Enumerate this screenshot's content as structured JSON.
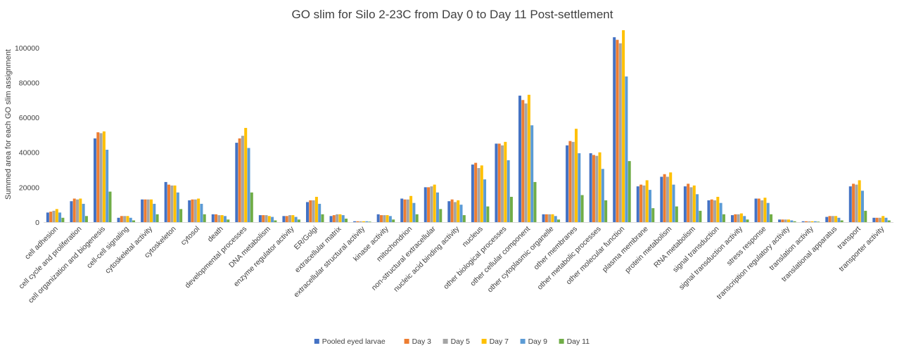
{
  "chart_data": {
    "type": "bar",
    "title": "GO slim for Silo 2-23C from Day 0 to Day 11 Post-settlement",
    "xlabel": "",
    "ylabel": "Summed area for each GO slim assignment",
    "ylim": [
      0,
      110000
    ],
    "yticks": [
      0,
      20000,
      40000,
      60000,
      80000,
      100000
    ],
    "grid": false,
    "legend_position": "bottom",
    "categories": [
      "cell adhesion",
      "cell cycle and proliferation",
      "cell organization and biogenesis",
      "cell-cell signaling",
      "cytoskeletal activity",
      "cytoskeleton",
      "cytosol",
      "death",
      "developmental processes",
      "DNA metabolism",
      "enzyme regulator activity",
      "ER/Golgi",
      "extracellular matrix",
      "extracellular structural activity",
      "kinase activity",
      "mitochondrion",
      "non-structural extracellular",
      "nucleic acid binding activity",
      "nucleus",
      "other biological processes",
      "other cellular component",
      "other cytoplasmic organelle",
      "other membranes",
      "other metabolic processes",
      "other molecular function",
      "plasma membrane",
      "protein metabolism",
      "RNA metabolism",
      "signal transduction",
      "signal transduction activity",
      "stress response",
      "transcription regulatory activity",
      "translation activity",
      "translational apparatus",
      "transport",
      "transporter activity"
    ],
    "series": [
      {
        "name": "Pooled eyed larvae",
        "color": "#4472c4",
        "values": [
          5500,
          12000,
          48000,
          2500,
          13000,
          23000,
          12500,
          4500,
          45500,
          4000,
          3500,
          11500,
          3500,
          500,
          4500,
          13500,
          20000,
          12000,
          33000,
          45000,
          72500,
          4500,
          44000,
          39500,
          106000,
          20500,
          26000,
          20500,
          12500,
          4000,
          13500,
          1500,
          500,
          3000,
          20500,
          2500
        ]
      },
      {
        "name": "Day 3",
        "color": "#ed7d31",
        "values": [
          6000,
          13500,
          51500,
          3500,
          13000,
          21500,
          13000,
          4500,
          48000,
          4000,
          3500,
          12500,
          4000,
          500,
          4000,
          13000,
          20000,
          13000,
          34000,
          45000,
          70000,
          4500,
          46500,
          38500,
          104500,
          21500,
          27500,
          22000,
          13000,
          4500,
          13500,
          1500,
          500,
          3500,
          22000,
          2500
        ]
      },
      {
        "name": "Day 5",
        "color": "#a5a5a5",
        "values": [
          6500,
          13000,
          51000,
          3500,
          13000,
          21000,
          13000,
          4000,
          49500,
          4000,
          4000,
          12500,
          4500,
          500,
          4000,
          13000,
          20500,
          11500,
          31000,
          44000,
          68000,
          4500,
          46000,
          38000,
          102500,
          21000,
          26000,
          20000,
          12500,
          4500,
          12500,
          1500,
          500,
          3500,
          21500,
          2500
        ]
      },
      {
        "name": "Day 7",
        "color": "#ffc000",
        "values": [
          7500,
          13500,
          52000,
          3500,
          13000,
          21000,
          13500,
          4000,
          54000,
          3500,
          4000,
          14500,
          4500,
          500,
          4000,
          15000,
          21500,
          12500,
          32500,
          46000,
          73000,
          4500,
          53500,
          40000,
          110000,
          24000,
          28500,
          21000,
          14500,
          5000,
          14000,
          1500,
          500,
          3500,
          24000,
          3500
        ]
      },
      {
        "name": "Day 9",
        "color": "#5b9bd5",
        "values": [
          5500,
          10500,
          41500,
          2500,
          10500,
          17000,
          10500,
          3500,
          42500,
          3000,
          3000,
          10500,
          4000,
          500,
          3500,
          11000,
          17000,
          10000,
          24500,
          35500,
          55500,
          3500,
          39500,
          30500,
          83500,
          18500,
          21500,
          16000,
          11000,
          3500,
          11000,
          1000,
          500,
          2500,
          18000,
          2500
        ]
      },
      {
        "name": "Day 11",
        "color": "#70ad47",
        "values": [
          2500,
          3500,
          17500,
          1000,
          4500,
          7500,
          4500,
          1500,
          17000,
          1000,
          1500,
          4500,
          2000,
          300,
          1500,
          4500,
          7500,
          4000,
          9000,
          14500,
          23000,
          1500,
          15500,
          12500,
          35000,
          8000,
          9000,
          6500,
          4500,
          1500,
          4500,
          500,
          300,
          1000,
          6500,
          1000
        ]
      }
    ]
  }
}
